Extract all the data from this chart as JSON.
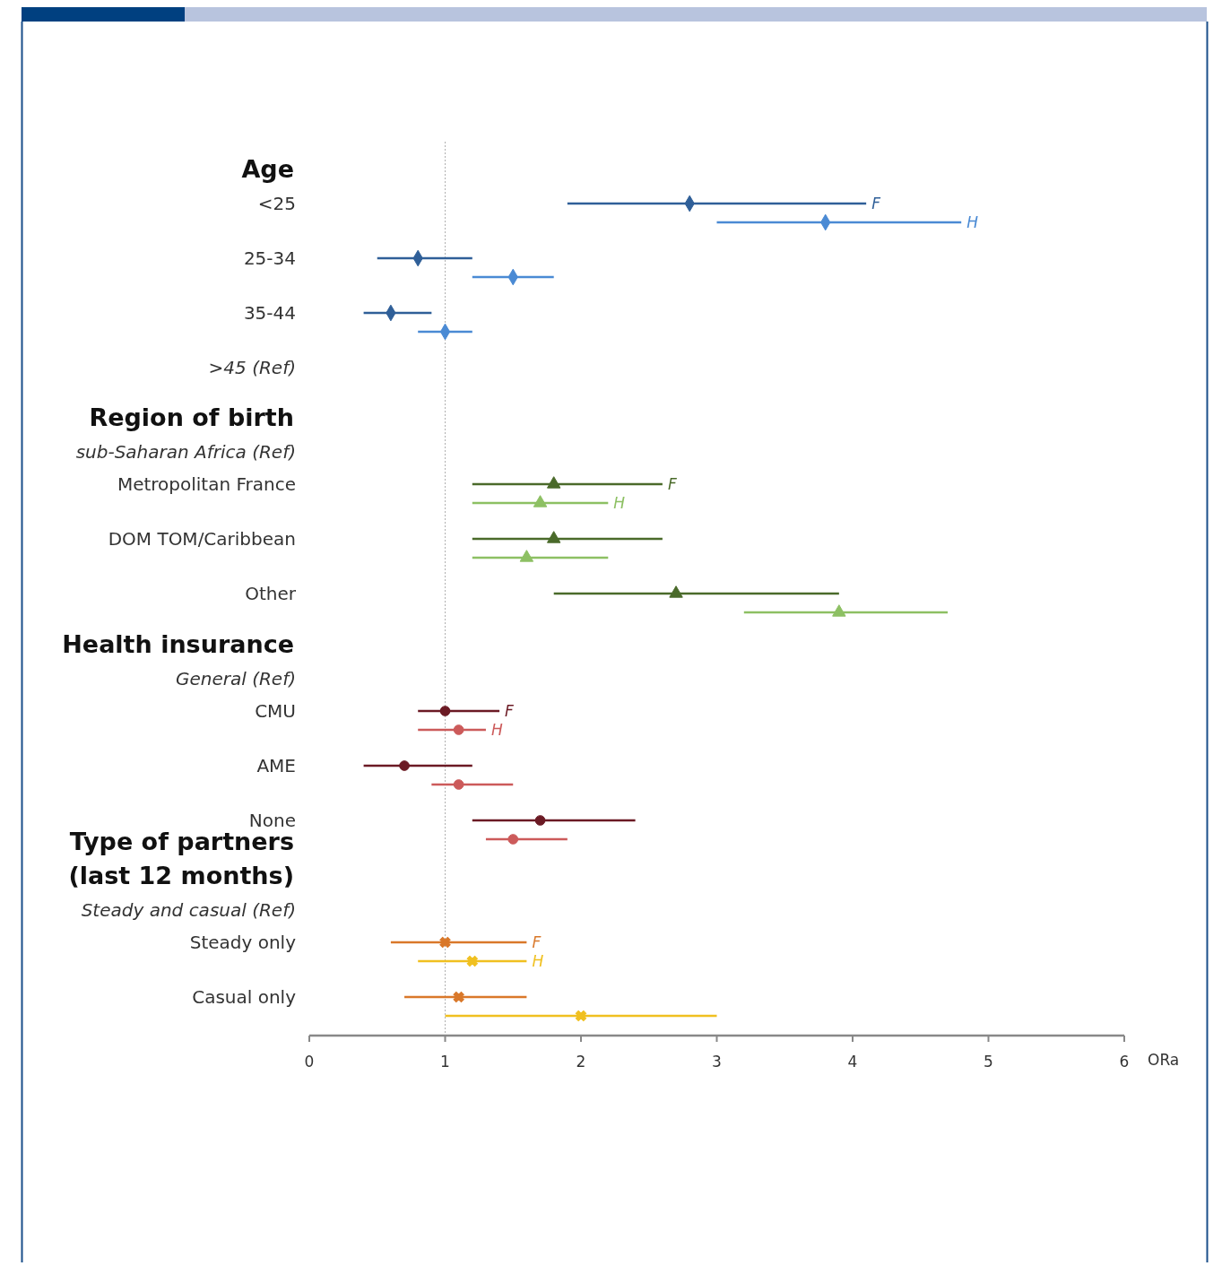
{
  "chart_data": {
    "type": "scatter",
    "orientation": "horizontal",
    "xlabel": "ORa",
    "xlim": [
      0,
      6
    ],
    "xticks": [
      0,
      1,
      2,
      3,
      4,
      5,
      6
    ],
    "categories": [
      "Age",
      "<25",
      null,
      "25-34",
      null,
      "35-44",
      null,
      ">45 (Ref)",
      "Region of birth",
      "sub-Saharan Africa  (Ref)",
      "Metropolitan  France",
      null,
      "DOM TOM/Caribbean",
      null,
      "Other",
      null,
      "Health insurance",
      "General  (Ref)",
      "CMU",
      null,
      "AME",
      null,
      "None",
      null,
      "Type of partners\n(last 12 months)",
      "Steady and casual  (Ref)",
      "Steady only",
      null,
      "Casual only",
      null
    ],
    "series": [
      {
        "name": "F",
        "color": "#2f5f98",
        "marker": "diamond",
        "values": [
          null,
          2.8,
          null,
          0.8,
          null,
          0.6,
          null,
          null,
          null,
          null,
          null,
          null,
          null,
          null,
          null,
          null,
          null,
          null,
          null,
          null,
          null,
          null,
          null,
          null,
          null,
          null,
          null,
          null,
          null,
          null
        ],
        "errors": [
          null,
          [
            1.9,
            4.1
          ],
          null,
          [
            0.5,
            1.2
          ],
          null,
          [
            0.4,
            0.9
          ],
          null,
          null,
          null,
          null,
          null,
          null,
          null,
          null,
          null,
          null,
          null,
          null,
          null,
          null,
          null,
          null,
          null,
          null,
          null,
          null,
          null,
          null,
          null,
          null
        ]
      },
      {
        "name": "H",
        "color": "#4a8ad4",
        "marker": "diamond",
        "values": [
          null,
          null,
          3.8,
          null,
          1.5,
          null,
          1.0,
          null,
          null,
          null,
          null,
          null,
          null,
          null,
          null,
          null,
          null,
          null,
          null,
          null,
          null,
          null,
          null,
          null,
          null,
          null,
          null,
          null,
          null,
          null
        ],
        "errors": [
          null,
          null,
          [
            3.0,
            4.8
          ],
          null,
          [
            1.2,
            1.8
          ],
          null,
          [
            0.8,
            1.2
          ],
          null,
          null,
          null,
          null,
          null,
          null,
          null,
          null,
          null,
          null,
          null,
          null,
          null,
          null,
          null,
          null,
          null,
          null,
          null,
          null,
          null,
          null,
          null
        ]
      },
      {
        "name": "F",
        "color": "#4a6a2a",
        "marker": "triangle",
        "values": [
          null,
          null,
          null,
          null,
          null,
          null,
          null,
          null,
          null,
          null,
          1.8,
          null,
          1.8,
          null,
          2.7,
          null,
          null,
          null,
          null,
          null,
          null,
          null,
          null,
          null,
          null,
          null,
          null,
          null,
          null,
          null
        ],
        "errors": [
          null,
          null,
          null,
          null,
          null,
          null,
          null,
          null,
          null,
          null,
          [
            1.2,
            2.6
          ],
          null,
          [
            1.2,
            2.6
          ],
          null,
          [
            1.8,
            3.9
          ],
          null,
          null,
          null,
          null,
          null,
          null,
          null,
          null,
          null,
          null,
          null,
          null,
          null,
          null,
          null
        ]
      },
      {
        "name": "H",
        "color": "#8dc063",
        "marker": "triangle",
        "values": [
          null,
          null,
          null,
          null,
          null,
          null,
          null,
          null,
          null,
          null,
          null,
          1.7,
          null,
          1.6,
          null,
          3.9,
          null,
          null,
          null,
          null,
          null,
          null,
          null,
          null,
          null,
          null,
          null,
          null,
          null,
          null
        ],
        "errors": [
          null,
          null,
          null,
          null,
          null,
          null,
          null,
          null,
          null,
          null,
          null,
          [
            1.2,
            2.2
          ],
          null,
          [
            1.2,
            2.2
          ],
          null,
          [
            3.2,
            4.7
          ],
          null,
          null,
          null,
          null,
          null,
          null,
          null,
          null,
          null,
          null,
          null,
          null,
          null,
          null
        ]
      },
      {
        "name": "F",
        "color": "#6b1a24",
        "marker": "circle",
        "values": [
          null,
          null,
          null,
          null,
          null,
          null,
          null,
          null,
          null,
          null,
          null,
          null,
          null,
          null,
          null,
          null,
          null,
          null,
          1.0,
          null,
          0.7,
          null,
          1.7,
          null,
          null,
          null,
          null,
          null,
          null,
          null
        ],
        "errors": [
          null,
          null,
          null,
          null,
          null,
          null,
          null,
          null,
          null,
          null,
          null,
          null,
          null,
          null,
          null,
          null,
          null,
          null,
          [
            0.8,
            1.4
          ],
          null,
          [
            0.4,
            1.2
          ],
          null,
          [
            1.2,
            2.4
          ],
          null,
          null,
          null,
          null,
          null,
          null,
          null
        ]
      },
      {
        "name": "H",
        "color": "#cc5a5a",
        "marker": "circle",
        "values": [
          null,
          null,
          null,
          null,
          null,
          null,
          null,
          null,
          null,
          null,
          null,
          null,
          null,
          null,
          null,
          null,
          null,
          null,
          null,
          1.1,
          null,
          1.1,
          null,
          1.5,
          null,
          null,
          null,
          null,
          null,
          null
        ],
        "errors": [
          null,
          null,
          null,
          null,
          null,
          null,
          null,
          null,
          null,
          null,
          null,
          null,
          null,
          null,
          null,
          null,
          null,
          null,
          null,
          [
            0.8,
            1.3
          ],
          null,
          [
            0.9,
            1.5
          ],
          null,
          [
            1.3,
            1.9
          ],
          null,
          null,
          null,
          null,
          null,
          null
        ]
      },
      {
        "name": "F",
        "color": "#d9782a",
        "marker": "cross",
        "values": [
          null,
          null,
          null,
          null,
          null,
          null,
          null,
          null,
          null,
          null,
          null,
          null,
          null,
          null,
          null,
          null,
          null,
          null,
          null,
          null,
          null,
          null,
          null,
          null,
          null,
          null,
          1.0,
          null,
          1.1,
          null
        ],
        "errors": [
          null,
          null,
          null,
          null,
          null,
          null,
          null,
          null,
          null,
          null,
          null,
          null,
          null,
          null,
          null,
          null,
          null,
          null,
          null,
          null,
          null,
          null,
          null,
          null,
          null,
          null,
          [
            0.6,
            1.6
          ],
          null,
          [
            0.7,
            1.6
          ],
          null
        ]
      },
      {
        "name": "H",
        "color": "#f0c020",
        "marker": "cross",
        "values": [
          null,
          null,
          null,
          null,
          null,
          null,
          null,
          null,
          null,
          null,
          null,
          null,
          null,
          null,
          null,
          null,
          null,
          null,
          null,
          null,
          null,
          null,
          null,
          null,
          null,
          null,
          null,
          1.2,
          null,
          2.0
        ],
        "errors": [
          null,
          null,
          null,
          null,
          null,
          null,
          null,
          null,
          null,
          null,
          null,
          null,
          null,
          null,
          null,
          null,
          null,
          null,
          null,
          null,
          null,
          null,
          null,
          null,
          null,
          null,
          null,
          [
            0.8,
            1.6
          ],
          null,
          [
            1.0,
            3.0
          ]
        ]
      }
    ],
    "ref_lines": [
      {
        "axis": "x",
        "value": 1,
        "color": "#b0b0b0",
        "line_style": "dotted"
      }
    ]
  }
}
